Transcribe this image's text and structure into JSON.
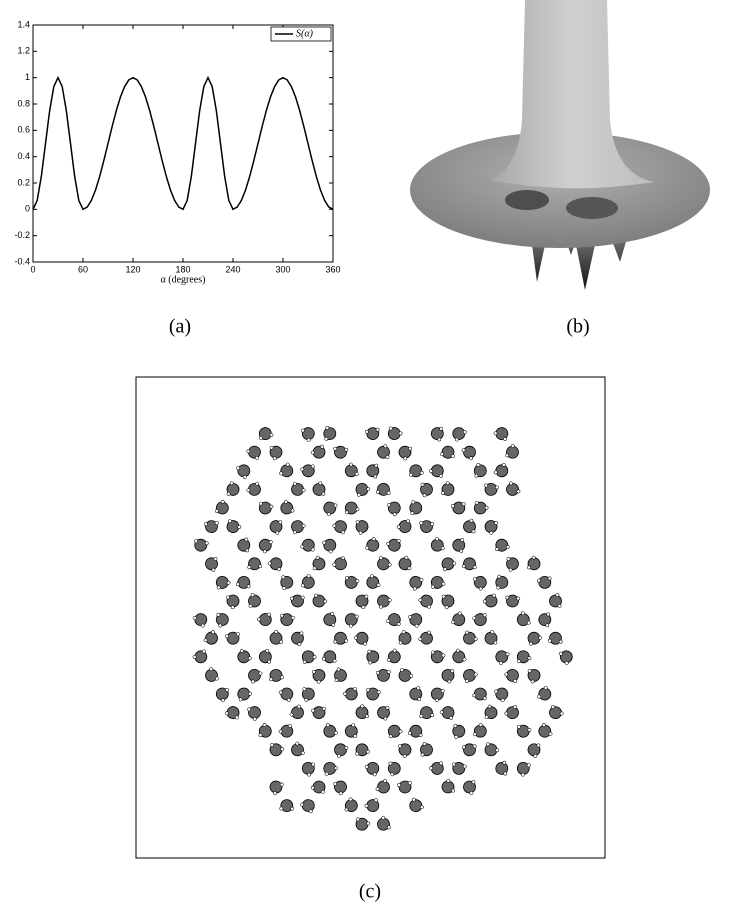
{
  "chart_data": {
    "type": "line",
    "xlabel": "α (degrees)",
    "x": [
      0,
      5,
      10,
      15,
      20,
      25,
      30,
      35,
      40,
      45,
      50,
      55,
      60,
      65,
      70,
      75,
      80,
      85,
      90,
      95,
      100,
      105,
      110,
      115,
      120,
      125,
      130,
      135,
      140,
      145,
      150,
      155,
      160,
      165,
      170,
      175,
      180,
      185,
      190,
      195,
      200,
      205,
      210,
      215,
      220,
      225,
      230,
      235,
      240,
      245,
      250,
      255,
      260,
      265,
      270,
      275,
      280,
      285,
      290,
      295,
      300,
      305,
      310,
      315,
      320,
      325,
      330,
      335,
      340,
      345,
      350,
      355,
      360
    ],
    "series": [
      {
        "name": "S(α)",
        "color": "#000000",
        "values": [
          0,
          0.067,
          0.25,
          0.5,
          0.75,
          0.933,
          1,
          0.933,
          0.75,
          0.5,
          0.25,
          0.067,
          0,
          0.017,
          0.067,
          0.146,
          0.25,
          0.37,
          0.5,
          0.63,
          0.75,
          0.854,
          0.933,
          0.983,
          1,
          0.983,
          0.933,
          0.854,
          0.75,
          0.63,
          0.5,
          0.37,
          0.25,
          0.146,
          0.067,
          0.017,
          0,
          0.067,
          0.25,
          0.5,
          0.75,
          0.933,
          1,
          0.933,
          0.75,
          0.5,
          0.25,
          0.067,
          0,
          0.017,
          0.067,
          0.146,
          0.25,
          0.37,
          0.5,
          0.63,
          0.75,
          0.854,
          0.933,
          0.983,
          1,
          0.983,
          0.933,
          0.854,
          0.75,
          0.63,
          0.5,
          0.37,
          0.25,
          0.146,
          0.067,
          0.017,
          0
        ]
      }
    ],
    "xlim": [
      0,
      360
    ],
    "xticks": [
      0,
      60,
      120,
      180,
      240,
      300,
      360
    ],
    "ylim": [
      -0.4,
      1.4
    ],
    "yticks": [
      -0.4,
      -0.2,
      0,
      0.2,
      0.4,
      0.6,
      0.8,
      1,
      1.2,
      1.4
    ],
    "legend": "upper right"
  },
  "captions": {
    "a": "(a)",
    "b": "(b)",
    "c": "(c)"
  }
}
